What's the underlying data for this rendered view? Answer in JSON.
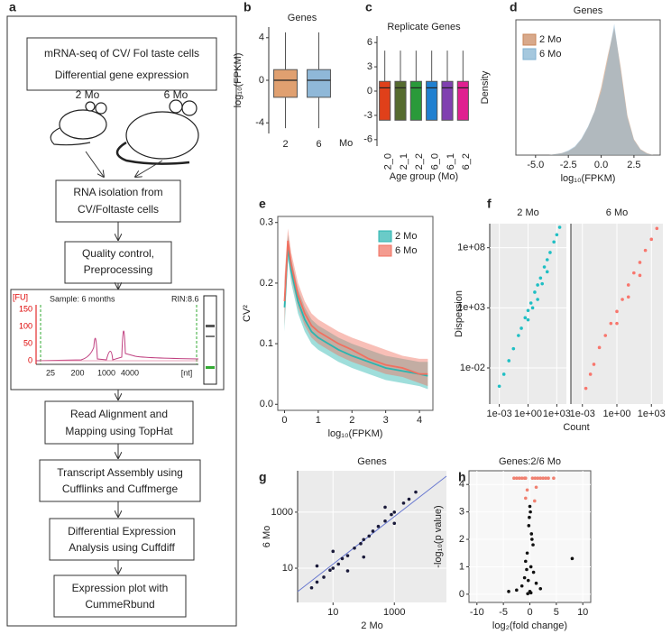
{
  "flowchart": {
    "panel": "a",
    "steps": [
      {
        "lines": [
          "mRNA-seq of CV/ Fol taste cells",
          "Differential gene expression"
        ]
      },
      {
        "lines": [
          "RNA isolation from",
          "CV/Foltaste cells"
        ]
      },
      {
        "lines": [
          "Quality control,",
          "Preprocessing"
        ]
      },
      {
        "lines": [
          "Read Alignment and",
          "Mapping using TopHat"
        ]
      },
      {
        "lines": [
          "Transcript Assembly using",
          "Cufflinks and Cuffmerge"
        ]
      },
      {
        "lines": [
          "Differential Expression",
          "Analysis using Cuffdiff"
        ]
      },
      {
        "lines": [
          "Expression plot with",
          "CummeRbund"
        ]
      }
    ],
    "groups": [
      "2 Mo",
      "6 Mo"
    ],
    "inset": {
      "y_unit": "[FU]",
      "sample": "Sample: 6 months",
      "rin": "RIN:8.6",
      "yticks": [
        "150",
        "100",
        "50",
        "0"
      ],
      "xticks": [
        "25",
        "200",
        "1000",
        "4000"
      ],
      "x_unit": "[nt]"
    }
  },
  "chart_data": [
    {
      "type": "box",
      "panel": "b",
      "title": "Genes",
      "ylabel": "log₁₀(FPKM)",
      "xlabel": "Mo",
      "categories": [
        "2",
        "6"
      ],
      "colors": [
        "#e0a070",
        "#8fb8d8"
      ],
      "boxes": [
        {
          "low": -4.5,
          "q1": -1.6,
          "median": 0,
          "q3": 1,
          "high": 4.5
        },
        {
          "low": -4.5,
          "q1": -1.6,
          "median": 0,
          "q3": 1,
          "high": 4.5
        }
      ],
      "ylim": [
        -5,
        5
      ],
      "yticks": [
        -4,
        0,
        4
      ],
      "frame": false
    },
    {
      "type": "box",
      "panel": "c",
      "title": "Replicate Genes",
      "xlabel": "Age group (Mo)",
      "categories": [
        "2_0",
        "2_1",
        "2_2",
        "6_0",
        "6_1",
        "6_2"
      ],
      "colors": [
        "#e0401a",
        "#556b2f",
        "#2a9a3a",
        "#2080d0",
        "#8040b0",
        "#e02090"
      ],
      "boxes": [
        {
          "low": -3.6,
          "q1": -3.6,
          "median": 0.4,
          "q3": 1.2,
          "high": 5
        },
        {
          "low": -3.6,
          "q1": -3.6,
          "median": 0.4,
          "q3": 1.2,
          "high": 5
        },
        {
          "low": -3.6,
          "q1": -3.6,
          "median": 0.4,
          "q3": 1.2,
          "high": 5
        },
        {
          "low": -3.6,
          "q1": -3.6,
          "median": 0.4,
          "q3": 1.2,
          "high": 5
        },
        {
          "low": -3.6,
          "q1": -3.6,
          "median": 0.4,
          "q3": 1.2,
          "high": 5
        },
        {
          "low": -3.6,
          "q1": -3.6,
          "median": 0.4,
          "q3": 1.2,
          "high": 5
        }
      ],
      "ylim": [
        -6.8,
        6.8
      ],
      "yticks": [
        -6,
        -3,
        0,
        3,
        6
      ],
      "frame": false
    },
    {
      "type": "area",
      "panel": "d",
      "title": "Genes",
      "xlabel": "log₁₀(FPKM)",
      "ylabel": "Density",
      "x": [
        -6,
        -4,
        -3,
        -2.5,
        -2,
        -1.5,
        -1,
        -0.5,
        0,
        0.5,
        1,
        1.5,
        2,
        2.5,
        3,
        3.5,
        4
      ],
      "series": [
        {
          "name": "2 Mo",
          "color": "#c8855a",
          "values": [
            0,
            0,
            0.005,
            0.01,
            0.02,
            0.04,
            0.07,
            0.11,
            0.17,
            0.25,
            0.32,
            0.22,
            0.1,
            0.04,
            0.015,
            0.005,
            0
          ]
        },
        {
          "name": "6 Mo",
          "color": "#7fb0d0",
          "values": [
            0,
            0,
            0.005,
            0.012,
            0.022,
            0.042,
            0.072,
            0.11,
            0.16,
            0.24,
            0.33,
            0.21,
            0.095,
            0.038,
            0.014,
            0.004,
            0
          ]
        }
      ],
      "xlim": [
        -6.5,
        4.5
      ],
      "xticks": [
        {
          "value": -5,
          "label": "-5.0"
        },
        {
          "value": -2.5,
          "label": "-2.5"
        },
        {
          "value": 0,
          "label": "0.0"
        },
        {
          "value": 2.5,
          "label": "2.5"
        }
      ],
      "ylim": [
        0,
        0.34
      ],
      "legend": "top-left",
      "frame": true
    },
    {
      "type": "line",
      "panel": "e",
      "xlabel": "log₁₀(FPKM)",
      "ylabel": "CV²",
      "x": [
        0,
        0.1,
        0.2,
        0.4,
        0.6,
        0.8,
        1,
        1.3,
        1.6,
        2,
        2.5,
        3,
        3.5,
        4,
        4.25
      ],
      "series": [
        {
          "name": "2 Mo",
          "color": "#2bb5b0",
          "values": [
            0.16,
            0.26,
            0.22,
            0.17,
            0.14,
            0.12,
            0.11,
            0.1,
            0.09,
            0.08,
            0.07,
            0.06,
            0.055,
            0.05,
            0.047
          ],
          "lower": [
            0.12,
            0.24,
            0.2,
            0.15,
            0.12,
            0.1,
            0.09,
            0.08,
            0.07,
            0.06,
            0.05,
            0.04,
            0.035,
            0.03,
            0.025
          ],
          "upper": [
            0.2,
            0.28,
            0.24,
            0.19,
            0.16,
            0.14,
            0.13,
            0.12,
            0.11,
            0.1,
            0.09,
            0.08,
            0.075,
            0.07,
            0.07
          ]
        },
        {
          "name": "6 Mo",
          "color": "#f07060",
          "values": [
            0.17,
            0.27,
            0.23,
            0.18,
            0.15,
            0.13,
            0.12,
            0.11,
            0.1,
            0.09,
            0.075,
            0.065,
            0.06,
            0.05,
            0.05
          ],
          "lower": [
            0.13,
            0.25,
            0.21,
            0.16,
            0.13,
            0.11,
            0.1,
            0.09,
            0.08,
            0.07,
            0.06,
            0.05,
            0.045,
            0.035,
            0.03
          ],
          "upper": [
            0.21,
            0.29,
            0.25,
            0.2,
            0.17,
            0.15,
            0.14,
            0.13,
            0.12,
            0.11,
            0.1,
            0.09,
            0.08,
            0.075,
            0.075
          ]
        }
      ],
      "xlim": [
        -0.2,
        4.4
      ],
      "xticks": [
        0,
        1,
        2,
        3,
        4
      ],
      "ylim": [
        -0.01,
        0.31
      ],
      "yticks": [
        {
          "value": 0,
          "label": "0.0"
        },
        0.1,
        0.2,
        0.3
      ],
      "legend": "top-right",
      "frame": true
    },
    {
      "type": "scatter",
      "panel": "f",
      "xlabel": "Count",
      "ylabel": "Dispersion",
      "facets": true,
      "log": true,
      "grid": true,
      "background": "#ebebeb",
      "series": [
        {
          "name": "2 Mo",
          "color": "#1fbfc4",
          "x": [
            0.001,
            0.003,
            0.01,
            0.03,
            0.1,
            0.2,
            0.5,
            1,
            2,
            5,
            10,
            20,
            50,
            100,
            200,
            500,
            1000,
            2000,
            1,
            10,
            100,
            3,
            30
          ],
          "values": [
            0.0003,
            0.003,
            0.04,
            0.4,
            5,
            20,
            150,
            600,
            2500,
            20000,
            80000,
            300000,
            2500000,
            10000000,
            40000000,
            300000000,
            1200000000,
            5000000000,
            100,
            5000,
            1000000,
            1000,
            100000
          ]
        },
        {
          "name": "6 Mo",
          "color": "#f8766d",
          "x": [
            0.002,
            0.005,
            0.01,
            0.03,
            0.1,
            0.3,
            1,
            3,
            10,
            30,
            100,
            300,
            1000,
            3000,
            1,
            10,
            100
          ],
          "values": [
            0.0002,
            0.003,
            0.02,
            0.5,
            5,
            50,
            500,
            5000,
            80000,
            800000,
            6000000,
            60000000,
            500000000,
            4000000000,
            50,
            8000,
            500000
          ]
        }
      ],
      "xlim": [
        0.0001,
        10000
      ],
      "xticks": [
        {
          "value": 0.001,
          "label": "1e-03"
        },
        {
          "value": 1,
          "label": "1e+00"
        },
        {
          "value": 1000,
          "label": "1e+03"
        }
      ],
      "ylim": [
        1e-05,
        10000000000
      ],
      "yticks": [
        {
          "value": 0.01,
          "label": "1e-02"
        },
        {
          "value": 1000,
          "label": "1e+03"
        },
        {
          "value": 100000000,
          "label": "1e+08"
        }
      ],
      "frame": false
    },
    {
      "type": "scatter",
      "panel": "g",
      "title": "Genes",
      "xlabel": "2 Mo",
      "ylabel": "6 Mo",
      "log": true,
      "grid": true,
      "background": "#ebebeb",
      "series": [
        {
          "color": "#1a1a3a",
          "x": [
            2,
            3,
            5,
            8,
            10,
            15,
            20,
            30,
            50,
            80,
            100,
            150,
            200,
            300,
            500,
            800,
            1000,
            2000,
            3000,
            5000,
            10,
            100,
            30,
            500,
            3,
            1000
          ],
          "values": [
            2,
            3.2,
            4.8,
            8.5,
            10,
            14,
            22,
            28,
            52,
            75,
            105,
            140,
            210,
            310,
            480,
            820,
            1000,
            2100,
            2900,
            5200,
            40,
            25,
            8,
            1500,
            12,
            400
          ]
        }
      ],
      "xlim": [
        0.7,
        50000
      ],
      "xticks": [
        10,
        1000
      ],
      "ylim": [
        0.6,
        30000
      ],
      "yticks": [
        10,
        1000
      ],
      "frame": false
    },
    {
      "type": "scatter",
      "panel": "h",
      "title": "Genes:2/6 Mo",
      "xlabel": "log₂(fold change)",
      "ylabel": "-log₁₀(p value)",
      "grid": true,
      "background": "#f7f7f7",
      "series": [
        {
          "color": "#f08070",
          "x": [
            -3,
            -2.5,
            -2,
            -1.5,
            -1,
            -0.8,
            0.5,
            1,
            1.5,
            2,
            2.5,
            3,
            3.5,
            4.5,
            -0.8,
            -0.5,
            0.9,
            1.2
          ],
          "values": [
            4.23,
            4.23,
            4.23,
            4.23,
            4.23,
            4.23,
            4.23,
            4.23,
            4.23,
            4.23,
            4.23,
            4.23,
            4.23,
            4.23,
            3.5,
            3.8,
            3.4,
            3.9
          ]
        },
        {
          "color": "#111111",
          "x": [
            -0.3,
            0.2,
            -0.5,
            0.4,
            -0.2,
            0.1,
            0,
            -0.8,
            0.7,
            -1,
            1.2,
            -1.5,
            2,
            -2.5,
            -4,
            8,
            0.3,
            -0.1,
            0.6,
            -0.6,
            0,
            0.2,
            -0.4
          ],
          "values": [
            0.5,
            1,
            1.5,
            2,
            2.5,
            3,
            0.1,
            1.2,
            0.8,
            0.6,
            0.4,
            0.3,
            0.2,
            0.15,
            0.1,
            1.3,
            2.2,
            2.8,
            1.8,
            0.9,
            3.2,
            0.05,
            0.02
          ]
        }
      ],
      "xlim": [
        -11.5,
        11.5
      ],
      "xticks": [
        -10,
        -5,
        0,
        5,
        10
      ],
      "ylim": [
        -0.3,
        4.5
      ],
      "yticks": [
        0,
        1,
        2,
        3,
        4
      ],
      "frame": true
    }
  ]
}
